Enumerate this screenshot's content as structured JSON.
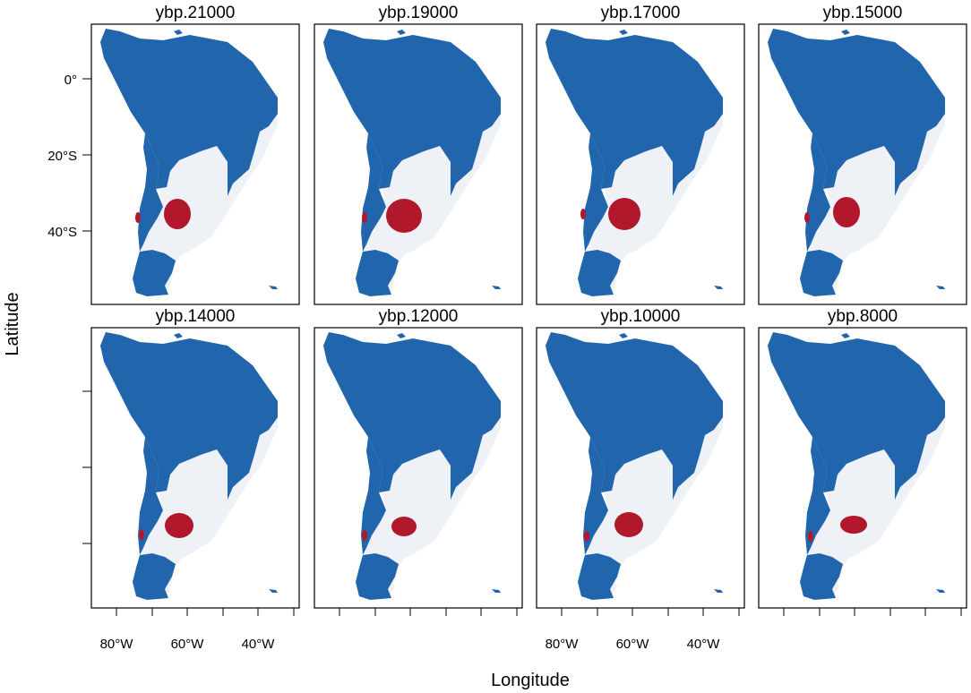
{
  "figure": {
    "xlabel": "Longitude",
    "ylabel": "Latitude",
    "x_ticks": [
      "80°W",
      "60°W",
      "40°W"
    ],
    "y_ticks": [
      "0°",
      "20°S",
      "40°S"
    ],
    "panels": [
      {
        "title": "ybp.21000"
      },
      {
        "title": "ybp.19000"
      },
      {
        "title": "ybp.17000"
      },
      {
        "title": "ybp.15000"
      },
      {
        "title": "ybp.14000"
      },
      {
        "title": "ybp.12000"
      },
      {
        "title": "ybp.10000"
      },
      {
        "title": "ybp.8000"
      }
    ]
  },
  "colors": {
    "land_unsuitable": "#2166ac",
    "land_suitable_other": "#eef2f7",
    "highlight_area": "#b2182b",
    "frame": "#000000"
  }
}
